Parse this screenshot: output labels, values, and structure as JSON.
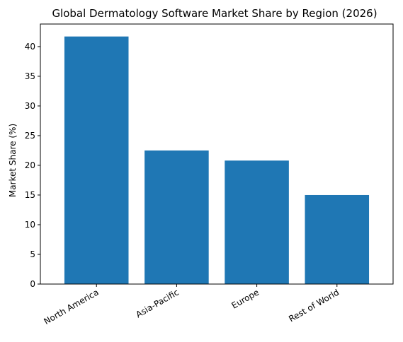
{
  "chart_data": {
    "type": "bar",
    "title": "Global Dermatology Software Market Share by Region (2026)",
    "xlabel": "",
    "ylabel": "Market Share (%)",
    "categories": [
      "North America",
      "Asia-Pacific",
      "Europe",
      "Rest of World"
    ],
    "values": [
      41.7,
      22.5,
      20.8,
      15.0
    ],
    "ylim": [
      0,
      43.8
    ],
    "yticks": [
      0,
      5,
      10,
      15,
      20,
      25,
      30,
      35,
      40
    ],
    "grid": false,
    "bar_color": "#1f77b4"
  }
}
